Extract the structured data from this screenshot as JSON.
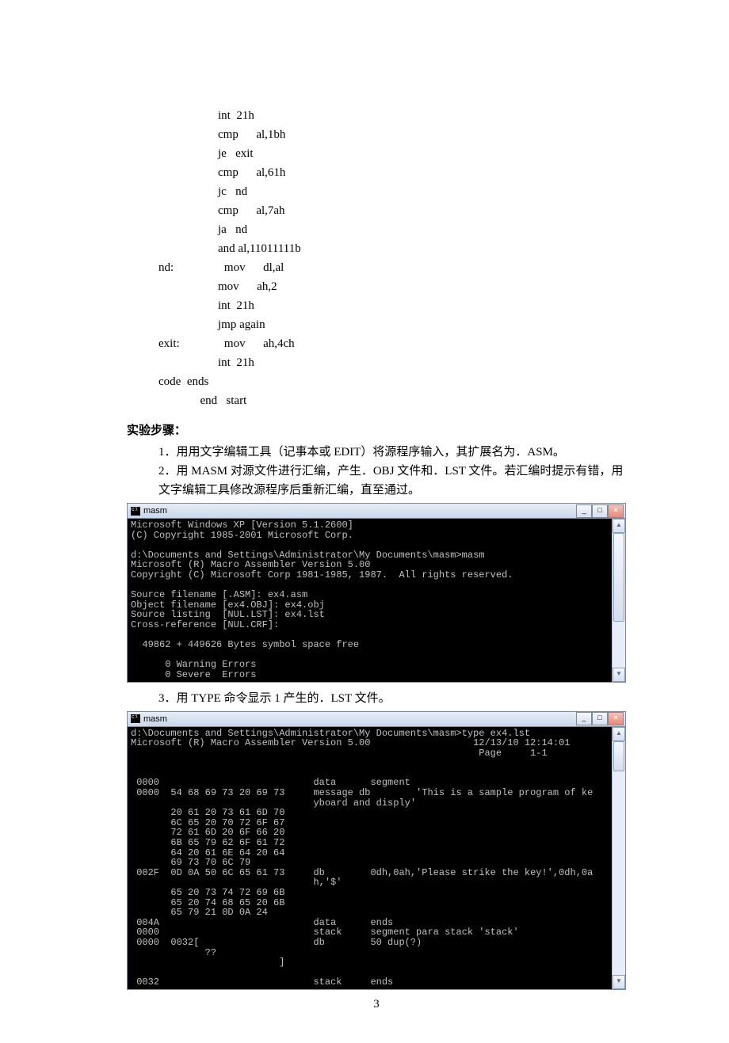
{
  "asm": {
    "lines": [
      "                    int  21h",
      "                    cmp      al,1bh",
      "                    je   exit",
      "                    cmp      al,61h",
      "                    jc   nd",
      "                    cmp      al,7ah",
      "                    ja   nd",
      "                    and al,11011111b",
      "nd:                 mov      dl,al",
      "                    mov      ah,2",
      "                    int  21h",
      "                    jmp again",
      "exit:               mov      ah,4ch",
      "                    int  21h",
      "code  ends",
      "              end   start"
    ]
  },
  "section_heading": "实验步骤：",
  "steps": {
    "s1": "1．用用文字编辑工具（记事本或 EDIT）将源程序输入，其扩展名为．ASM。",
    "s2a": "2．用 MASM 对源文件进行汇编，产生．OBJ 文件和．LST 文件。若汇编时提示有错，用",
    "s2b": "     文字编辑工具修改源程序后重新汇编，直至通过。",
    "s3": "3．用 TYPE 命令显示 1 产生的．LST 文件。"
  },
  "term": {
    "title": "masm",
    "min": "_",
    "max": "□",
    "close": "×",
    "up": "▲",
    "down": "▼"
  },
  "term1": {
    "thumb_top": 0,
    "thumb_height": 110,
    "body": "Microsoft Windows XP [Version 5.1.2600]\n(C) Copyright 1985-2001 Microsoft Corp.\n\nd:\\Documents and Settings\\Administrator\\My Documents\\masm>masm\nMicrosoft (R) Macro Assembler Version 5.00\nCopyright (C) Microsoft Corp 1981-1985, 1987.  All rights reserved.\n\nSource filename [.ASM]: ex4.asm\nObject filename [ex4.OBJ]: ex4.obj\nSource listing  [NUL.LST]: ex4.lst\nCross-reference [NUL.CRF]:\n\n  49862 + 449626 Bytes symbol space free\n\n      0 Warning Errors\n      0 Severe  Errors"
  },
  "term2": {
    "thumb_top": 0,
    "thumb_height": 36,
    "body": "d:\\Documents and Settings\\Administrator\\My Documents\\masm>type ex4.lst\nMicrosoft (R) Macro Assembler Version 5.00                  12/13/10 12:14:01\n                                                             Page     1-1\n\n\n 0000                           data      segment\n 0000  54 68 69 73 20 69 73     message db        'This is a sample program of ke\n                                yboard and disply'\n       20 61 20 73 61 6D 70\n       6C 65 20 70 72 6F 67\n       72 61 6D 20 6F 66 20\n       6B 65 79 62 6F 61 72\n       64 20 61 6E 64 20 64\n       69 73 70 6C 79\n 002F  0D 0A 50 6C 65 61 73     db        0dh,0ah,'Please strike the key!',0dh,0a\n                                h,'$'\n       65 20 73 74 72 69 6B\n       65 20 74 68 65 20 6B\n       65 79 21 0D 0A 24\n 004A                           data      ends\n 0000                           stack     segment para stack 'stack'\n 0000  0032[                    db        50 dup(?)\n             ??\n                          ]\n\n 0032                           stack     ends"
  },
  "page_number": "3"
}
